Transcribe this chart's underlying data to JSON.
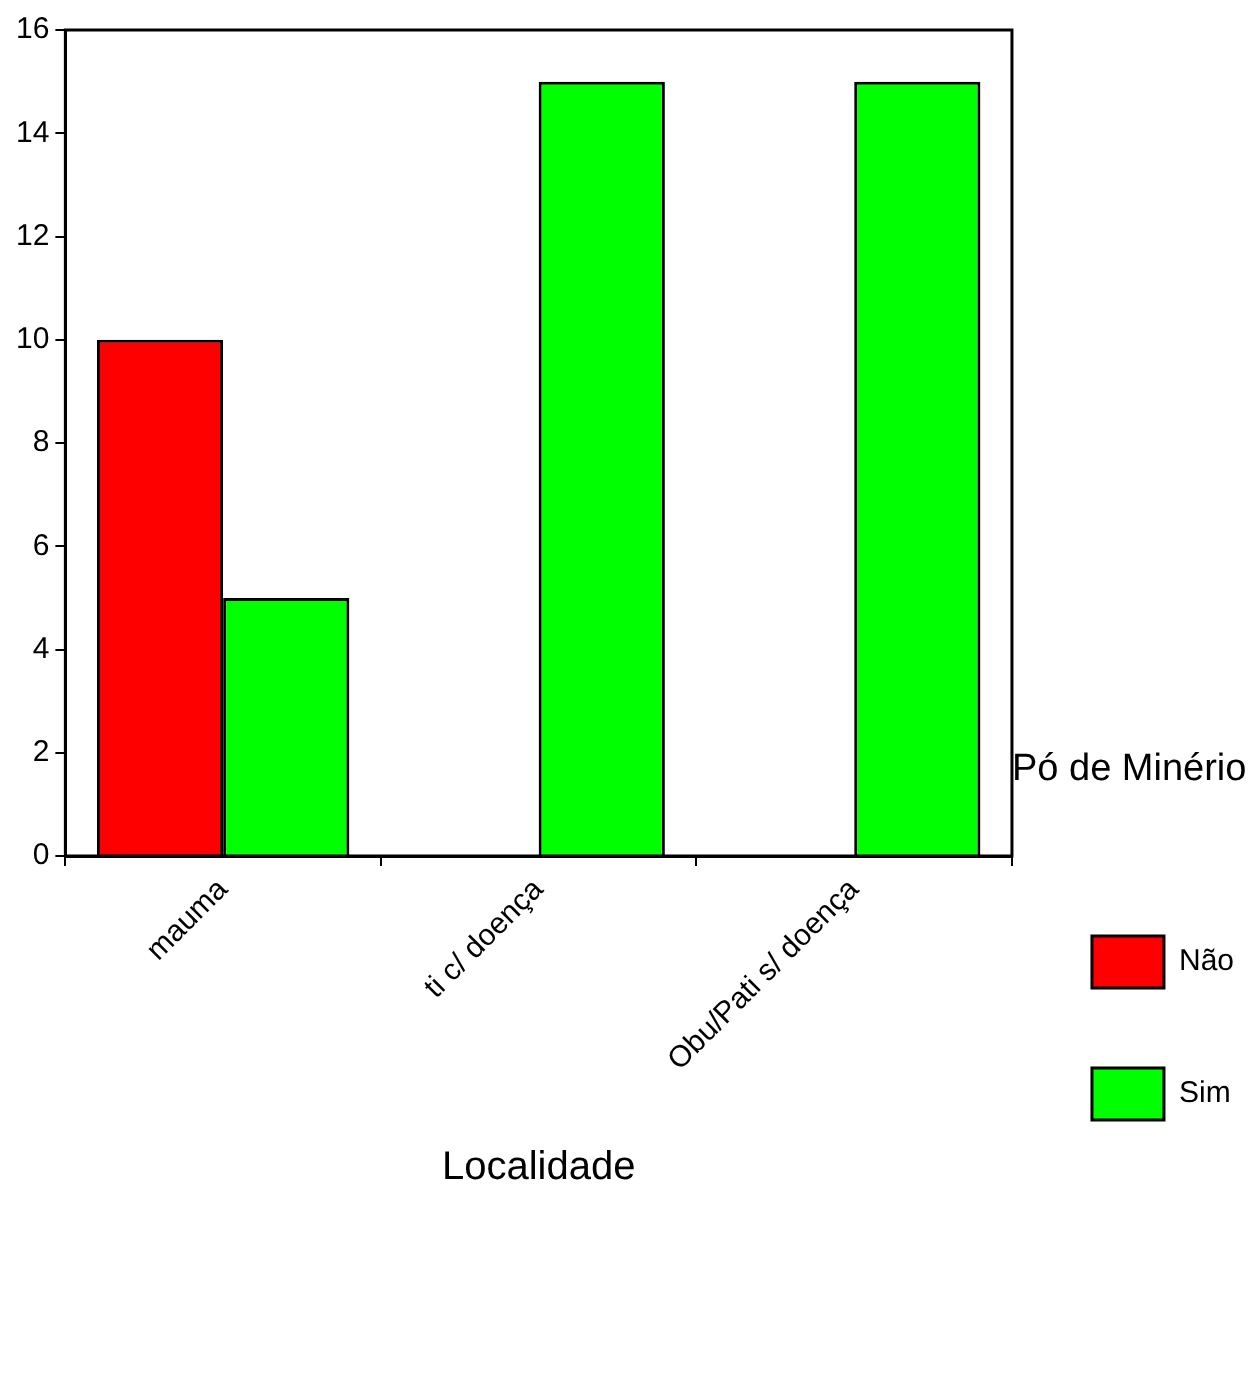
{
  "chart_data": {
    "type": "bar",
    "xlabel": "Localidade",
    "legend_title": "Pó de Minério",
    "categories": [
      "mauma",
      "ti c/ doença",
      "Obu/Pati s/ doença"
    ],
    "series": [
      {
        "name": "Não",
        "color": "#ff0000",
        "values": [
          10,
          0,
          0
        ]
      },
      {
        "name": "Sim",
        "color": "#00ff00",
        "values": [
          5,
          15,
          15
        ]
      }
    ],
    "ylim": [
      0,
      16
    ],
    "yticks": [
      0,
      2,
      4,
      6,
      8,
      10,
      12,
      14,
      16
    ],
    "grid": false,
    "legend": "right"
  }
}
